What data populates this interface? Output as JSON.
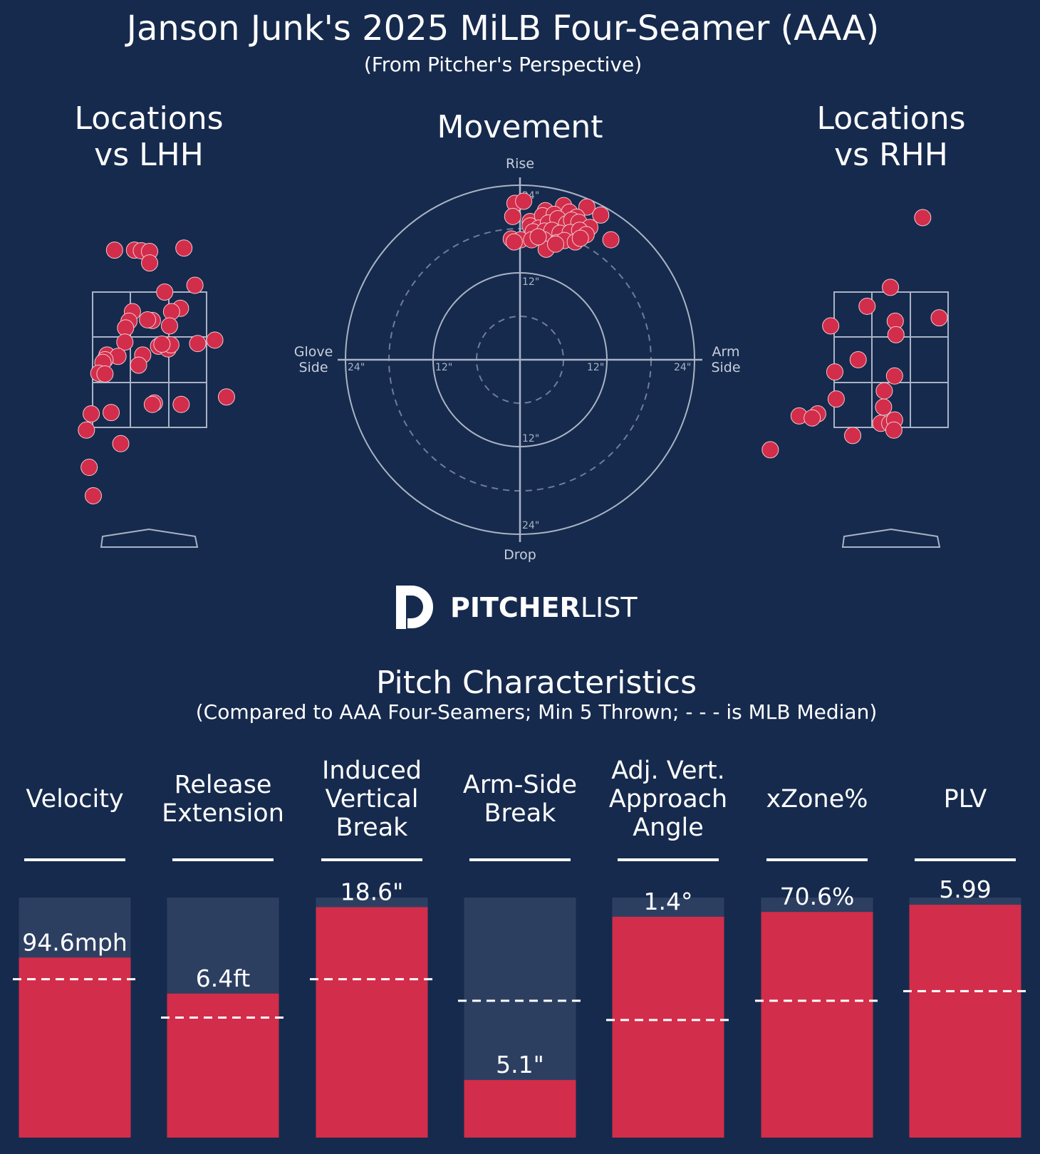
{
  "header": {
    "title": "Janson Junk's 2025 MiLB Four-Seamer (AAA)",
    "subtitle": "(From Pitcher's Perspective)"
  },
  "panels": {
    "lhh_title": [
      "Locations",
      "vs LHH"
    ],
    "movement_title": "Movement",
    "rhh_title": [
      "Locations",
      "vs RHH"
    ]
  },
  "movement": {
    "top_label": "Rise",
    "bottom_label": "Drop",
    "left_label": [
      "Glove",
      "Side"
    ],
    "right_label": [
      "Arm",
      "Side"
    ],
    "ring_labels": [
      "12\"",
      "24\""
    ]
  },
  "logo": {
    "bold": "PITCHER",
    "light": "LIST"
  },
  "characteristics": {
    "title": "Pitch Characteristics",
    "subtitle": "(Compared to AAA Four-Seamers; Min 5 Thrown; - - - is MLB Median)"
  },
  "colors": {
    "background": "#162a4d",
    "marker": "#d22d4a",
    "bar_track": "#2d3f61",
    "grid": "#a9b3c6"
  },
  "chart_data": [
    {
      "type": "scatter",
      "name": "Locations vs LHH",
      "x_units": "feet from plate center (pitcher's view)",
      "y_units": "feet above ground",
      "xlim": [
        -1.8,
        2.0
      ],
      "ylim": [
        0.4,
        4.9
      ],
      "points": [
        [
          -0.51,
          4.12
        ],
        [
          -0.22,
          4.12
        ],
        [
          -0.12,
          4.11
        ],
        [
          0.0,
          4.1
        ],
        [
          0.5,
          4.15
        ],
        [
          0.0,
          3.93
        ],
        [
          0.66,
          3.6
        ],
        [
          0.22,
          3.5
        ],
        [
          -0.25,
          3.21
        ],
        [
          0.45,
          3.26
        ],
        [
          0.32,
          3.21
        ],
        [
          -0.3,
          3.07
        ],
        [
          -0.35,
          2.97
        ],
        [
          0.04,
          3.08
        ],
        [
          -0.03,
          3.09
        ],
        [
          0.29,
          3.0
        ],
        [
          -0.36,
          2.76
        ],
        [
          0.7,
          2.74
        ],
        [
          0.95,
          2.79
        ],
        [
          0.13,
          2.7
        ],
        [
          0.27,
          2.66
        ],
        [
          0.31,
          2.72
        ],
        [
          0.18,
          2.73
        ],
        [
          -0.62,
          2.57
        ],
        [
          -0.46,
          2.55
        ],
        [
          -0.1,
          2.57
        ],
        [
          -0.65,
          2.5
        ],
        [
          -0.16,
          2.42
        ],
        [
          -0.68,
          2.46
        ],
        [
          -0.74,
          2.3
        ],
        [
          -0.65,
          2.29
        ],
        [
          1.12,
          1.95
        ],
        [
          0.07,
          1.86
        ],
        [
          0.04,
          1.84
        ],
        [
          0.46,
          1.84
        ],
        [
          -0.85,
          1.7
        ],
        [
          -0.56,
          1.72
        ],
        [
          -0.92,
          1.46
        ],
        [
          -0.42,
          1.26
        ],
        [
          -0.88,
          0.91
        ],
        [
          -0.82,
          0.49
        ]
      ]
    },
    {
      "type": "scatter",
      "name": "Movement",
      "x_units": "inches, arm side positive",
      "y_units": "inches, rise positive",
      "xlim": [
        -24,
        24
      ],
      "ylim": [
        -24,
        24
      ],
      "points": [
        [
          -0.7,
          21.5
        ],
        [
          0.5,
          21.8
        ],
        [
          3.5,
          20.5
        ],
        [
          6.0,
          21.2
        ],
        [
          9.2,
          21.0
        ],
        [
          -1.0,
          19.7
        ],
        [
          1.4,
          19.0
        ],
        [
          3.1,
          19.8
        ],
        [
          4.7,
          20.0
        ],
        [
          6.8,
          20.3
        ],
        [
          7.8,
          19.6
        ],
        [
          11.1,
          19.9
        ],
        [
          1.4,
          18.4
        ],
        [
          2.6,
          18.1
        ],
        [
          3.9,
          18.8
        ],
        [
          5.2,
          19.4
        ],
        [
          6.4,
          18.7
        ],
        [
          7.1,
          19.2
        ],
        [
          8.1,
          18.9
        ],
        [
          9.6,
          18.2
        ],
        [
          1.8,
          17.6
        ],
        [
          3.4,
          17.7
        ],
        [
          4.4,
          17.8
        ],
        [
          5.5,
          17.4
        ],
        [
          6.9,
          17.5
        ],
        [
          8.2,
          17.8
        ],
        [
          9.1,
          17.2
        ],
        [
          -1.2,
          16.6
        ],
        [
          0.1,
          16.5
        ],
        [
          1.6,
          16.5
        ],
        [
          3.3,
          16.5
        ],
        [
          5.1,
          16.1
        ],
        [
          6.1,
          16.4
        ],
        [
          7.6,
          16.2
        ],
        [
          8.3,
          16.7
        ],
        [
          -0.8,
          16.2
        ],
        [
          12.5,
          16.5
        ],
        [
          3.6,
          15.2
        ],
        [
          4.9,
          15.9
        ],
        [
          2.5,
          16.9
        ]
      ]
    },
    {
      "type": "scatter",
      "name": "Locations vs RHH",
      "x_units": "feet from plate center (pitcher's view)",
      "y_units": "feet above ground",
      "xlim": [
        -1.8,
        2.0
      ],
      "ylim": [
        0.4,
        4.9
      ],
      "points": [
        [
          0.46,
          4.6
        ],
        [
          -0.01,
          3.57
        ],
        [
          -0.35,
          3.29
        ],
        [
          0.06,
          3.07
        ],
        [
          0.7,
          3.12
        ],
        [
          -0.88,
          3.0
        ],
        [
          0.07,
          2.87
        ],
        [
          -0.48,
          2.5
        ],
        [
          -0.82,
          2.32
        ],
        [
          0.05,
          2.26
        ],
        [
          -0.1,
          2.04
        ],
        [
          -0.8,
          1.92
        ],
        [
          -0.11,
          1.8
        ],
        [
          -1.34,
          1.67
        ],
        [
          -1.07,
          1.7
        ],
        [
          -1.15,
          1.64
        ],
        [
          -0.15,
          1.56
        ],
        [
          -0.02,
          1.56
        ],
        [
          0.05,
          1.61
        ],
        [
          0.04,
          1.46
        ],
        [
          -0.56,
          1.38
        ],
        [
          -1.76,
          1.17
        ]
      ]
    },
    {
      "type": "bar",
      "name": "Pitch Characteristics",
      "categories": [
        [
          "Velocity"
        ],
        [
          "Release",
          "Extension"
        ],
        [
          "Induced",
          "Vertical",
          "Break"
        ],
        [
          "Arm-Side",
          "Break"
        ],
        [
          "Adj. Vert.",
          "Approach",
          "Angle"
        ],
        [
          "xZone%"
        ],
        [
          "PLV"
        ]
      ],
      "value_labels": [
        "94.6mph",
        "6.4ft",
        "18.6\"",
        "5.1\"",
        "1.4°",
        "70.6%",
        "5.99"
      ],
      "percentiles": [
        0.75,
        0.6,
        0.96,
        0.24,
        0.92,
        0.94,
        0.97
      ],
      "median_percentiles": [
        0.66,
        0.5,
        0.66,
        0.57,
        0.49,
        0.57,
        0.61
      ]
    }
  ]
}
